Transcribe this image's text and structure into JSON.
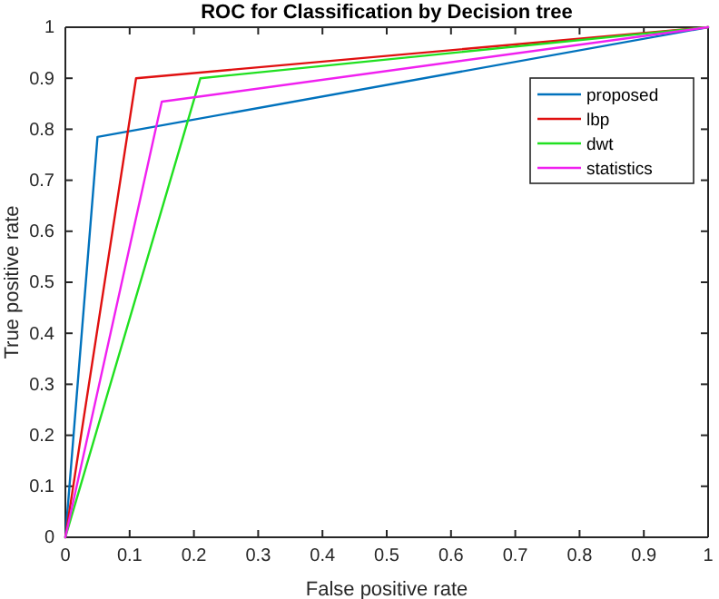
{
  "chart_data": {
    "type": "line",
    "title": "ROC for Classification by Decision tree",
    "xlabel": "False positive rate",
    "ylabel": "True positive rate",
    "xlim": [
      0,
      1
    ],
    "ylim": [
      0,
      1
    ],
    "xticks": [
      0,
      0.1,
      0.2,
      0.3,
      0.4,
      0.5,
      0.6,
      0.7,
      0.8,
      0.9,
      1
    ],
    "yticks": [
      0,
      0.1,
      0.2,
      0.3,
      0.4,
      0.5,
      0.6,
      0.7,
      0.8,
      0.9,
      1
    ],
    "grid": false,
    "legend": "top right",
    "marker": "none",
    "line_style": "solid",
    "series": [
      {
        "name": "proposed",
        "color": "#0072bd",
        "x": [
          0,
          0.05,
          1
        ],
        "values": [
          0,
          0.785,
          1
        ]
      },
      {
        "name": "lbp",
        "color": "#e01010",
        "x": [
          0,
          0.11,
          1
        ],
        "values": [
          0,
          0.9,
          1
        ]
      },
      {
        "name": "dwt",
        "color": "#20e020",
        "x": [
          0,
          0.21,
          1
        ],
        "values": [
          0,
          0.9,
          1
        ]
      },
      {
        "name": "statistics",
        "color": "#f020f0",
        "x": [
          0,
          0.15,
          1
        ],
        "values": [
          0,
          0.854,
          1
        ]
      }
    ]
  }
}
